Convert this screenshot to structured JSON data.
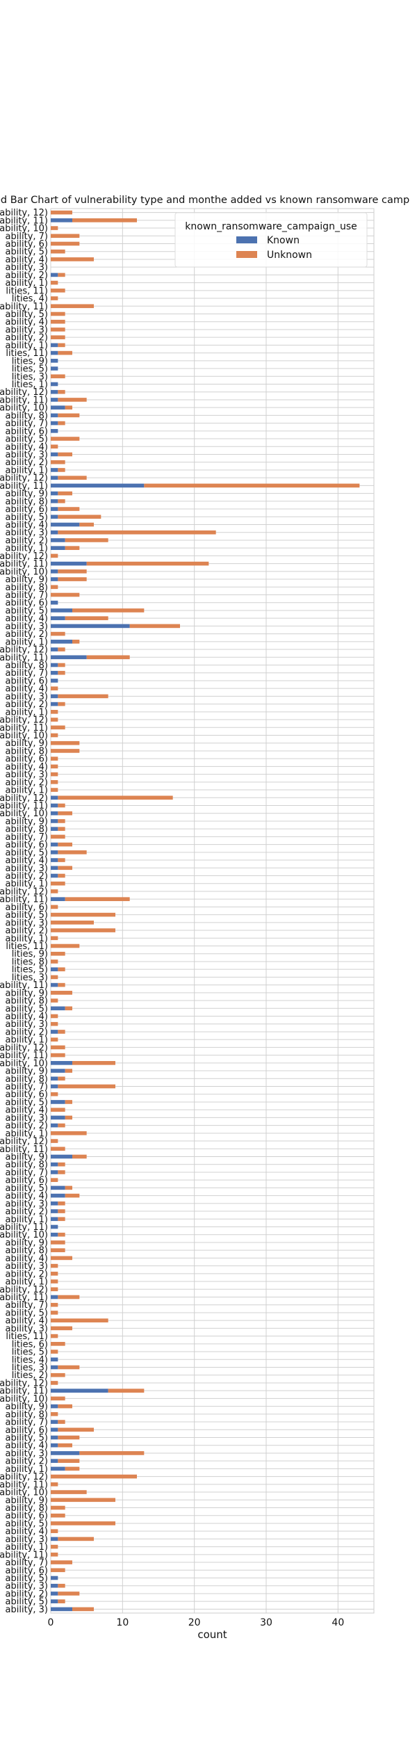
{
  "chart_data": {
    "type": "bar",
    "orientation": "horizontal",
    "stacked": true,
    "title": "ed Bar Chart of  vulnerability type and monthe added vs known ransomware camp",
    "xlabel": "count",
    "ylabel": "",
    "xlim": [
      0,
      45
    ],
    "xticks": [
      0,
      10,
      20,
      30,
      40
    ],
    "grid": true,
    "legend": {
      "title": "known_ransomware_campaign_use",
      "placement": "top-right",
      "entries": [
        "Known",
        "Unknown"
      ]
    },
    "colors": {
      "Known": "#4c72b0",
      "Unknown": "#dd8452"
    },
    "categories": [
      "ability, 12)",
      "ability, 11)",
      "ability, 10)",
      "ability, 7)",
      "ability, 6)",
      "ability, 5)",
      "ability, 4)",
      "ability, 3)",
      "ability, 2)",
      "ability, 1)",
      "lities, 11)",
      "lities, 4)",
      "ability, 11)",
      "ability, 5)",
      "ability, 4)",
      "ability, 3)",
      "ability, 2)",
      "ability, 1)",
      "lities, 11)",
      "lities, 9)",
      "lities, 5)",
      "lities, 3)",
      "lities, 1)",
      "ability, 12)",
      "ability, 11)",
      "ability, 10)",
      "ability, 8)",
      "ability, 7)",
      "ability, 6)",
      "ability, 5)",
      "ability, 4)",
      "ability, 3)",
      "ability, 2)",
      "ability, 1)",
      "ability, 12)",
      "ability, 11)",
      "ability, 9)",
      "ability, 8)",
      "ability, 6)",
      "ability, 5)",
      "ability, 4)",
      "ability, 3)",
      "ability, 2)",
      "ability, 1)",
      "ability, 12)",
      "ability, 11)",
      "ability, 10)",
      "ability, 9)",
      "ability, 8)",
      "ability, 7)",
      "ability, 6)",
      "ability, 5)",
      "ability, 4)",
      "ability, 3)",
      "ability, 2)",
      "ability, 1)",
      "ability, 12)",
      "ability, 11)",
      "ability, 8)",
      "ability, 7)",
      "ability, 6)",
      "ability, 4)",
      "ability, 3)",
      "ability, 2)",
      "ability, 1)",
      "ability, 12)",
      "ability, 11)",
      "ability, 10)",
      "ability, 9)",
      "ability, 8)",
      "ability, 6)",
      "ability, 4)",
      "ability, 3)",
      "ability, 2)",
      "ability, 1)",
      "ability, 12)",
      "ability, 11)",
      "ability, 10)",
      "ability, 9)",
      "ability, 8)",
      "ability, 7)",
      "ability, 6)",
      "ability, 5)",
      "ability, 4)",
      "ability, 3)",
      "ability, 2)",
      "ability, 1)",
      "ability, 12)",
      "ability, 11)",
      "ability, 6)",
      "ability, 5)",
      "ability, 3)",
      "ability, 2)",
      "ability, 1)",
      "lities, 11)",
      "lities, 9)",
      "lities, 8)",
      "lities, 5)",
      "lities, 3)",
      "ability, 11)",
      "ability, 9)",
      "ability, 8)",
      "ability, 5)",
      "ability, 4)",
      "ability, 3)",
      "ability, 2)",
      "ability, 1)",
      "ability, 12)",
      "ability, 11)",
      "ability, 10)",
      "ability, 9)",
      "ability, 8)",
      "ability, 7)",
      "ability, 6)",
      "ability, 5)",
      "ability, 4)",
      "ability, 3)",
      "ability, 2)",
      "ability, 1)",
      "ability, 12)",
      "ability, 11)",
      "ability, 9)",
      "ability, 8)",
      "ability, 7)",
      "ability, 6)",
      "ability, 5)",
      "ability, 4)",
      "ability, 3)",
      "ability, 2)",
      "ability, 1)",
      "ability, 11)",
      "ability, 10)",
      "ability, 9)",
      "ability, 8)",
      "ability, 4)",
      "ability, 3)",
      "ability, 2)",
      "ability, 1)",
      "ability, 12)",
      "ability, 11)",
      "ability, 7)",
      "ability, 5)",
      "ability, 4)",
      "ability, 3)",
      "lities, 11)",
      "lities, 6)",
      "lities, 5)",
      "lities, 4)",
      "lities, 3)",
      "lities, 2)",
      "ability, 12)",
      "ability, 11)",
      "ability, 10)",
      "ability, 9)",
      "ability, 8)",
      "ability, 7)",
      "ability, 6)",
      "ability, 5)",
      "ability, 4)",
      "ability, 3)",
      "ability, 2)",
      "ability, 1)",
      "ability, 12)",
      "ability, 11)",
      "ability, 10)",
      "ability, 9)",
      "ability, 8)",
      "ability, 6)",
      "ability, 5)",
      "ability, 4)",
      "ability, 3)",
      "ability, 1)",
      "ability, 11)",
      "ability, 7)",
      "ability, 6)",
      "ability, 5)",
      "ability, 3)",
      "ability, 2)",
      "ability, 5)",
      "ability, 3)"
    ],
    "series": [
      {
        "name": "Known",
        "values": [
          0,
          3,
          0,
          0,
          0,
          0,
          0,
          0,
          1,
          0,
          0,
          0,
          0,
          0,
          0,
          0,
          0,
          1,
          1,
          1,
          1,
          0,
          1,
          1,
          1,
          2,
          1,
          1,
          1,
          0,
          0,
          1,
          0,
          1,
          1,
          13,
          1,
          1,
          1,
          1,
          4,
          1,
          2,
          2,
          0,
          5,
          1,
          1,
          0,
          0,
          1,
          3,
          2,
          11,
          0,
          3,
          1,
          5,
          1,
          1,
          1,
          0,
          1,
          1,
          0,
          0,
          0,
          0,
          0,
          0,
          0,
          0,
          0,
          0,
          0,
          1,
          1,
          1,
          1,
          1,
          0,
          1,
          1,
          1,
          1,
          1,
          0,
          0,
          2,
          0,
          0,
          0,
          0,
          0,
          0,
          0,
          0,
          1,
          0,
          1,
          0,
          0,
          2,
          0,
          0,
          1,
          0,
          0,
          0,
          3,
          2,
          1,
          1,
          0,
          2,
          0,
          2,
          1,
          0,
          0,
          0,
          3,
          1,
          1,
          0,
          2,
          2,
          1,
          1,
          1,
          1,
          1,
          0,
          0,
          0,
          0,
          0,
          0,
          0,
          1,
          0,
          0,
          0,
          0,
          0,
          0,
          0,
          1,
          1,
          0,
          0,
          8,
          0,
          1,
          0,
          1,
          1,
          1,
          1,
          4,
          1,
          2,
          0,
          0,
          0,
          0,
          0,
          0,
          0,
          0,
          1,
          0,
          0,
          0,
          0,
          1,
          1,
          1,
          1,
          3
        ]
      },
      {
        "name": "Unknown",
        "values": [
          3,
          9,
          1,
          4,
          4,
          2,
          6,
          0,
          1,
          1,
          2,
          1,
          6,
          2,
          2,
          2,
          2,
          1,
          2,
          0,
          0,
          2,
          0,
          1,
          4,
          1,
          3,
          1,
          0,
          4,
          1,
          2,
          2,
          1,
          4,
          30,
          2,
          1,
          3,
          6,
          2,
          22,
          6,
          2,
          1,
          17,
          4,
          4,
          1,
          4,
          0,
          10,
          6,
          7,
          2,
          1,
          1,
          6,
          1,
          1,
          0,
          1,
          7,
          1,
          1,
          1,
          2,
          1,
          4,
          4,
          1,
          1,
          1,
          1,
          1,
          16,
          1,
          2,
          1,
          1,
          2,
          2,
          4,
          1,
          2,
          1,
          2,
          1,
          9,
          1,
          9,
          6,
          9,
          1,
          4,
          2,
          1,
          1,
          1,
          1,
          3,
          1,
          1,
          1,
          1,
          1,
          1,
          2,
          2,
          6,
          1,
          1,
          8,
          1,
          1,
          2,
          1,
          1,
          5,
          1,
          2,
          2,
          1,
          1,
          1,
          1,
          2,
          1,
          1,
          1,
          0,
          1,
          2,
          2,
          3,
          1,
          1,
          1,
          1,
          3,
          1,
          1,
          8,
          3,
          1,
          2,
          1,
          0,
          3,
          2,
          1,
          5,
          2,
          2,
          1,
          1,
          5,
          3,
          2,
          9,
          3,
          2,
          12,
          1,
          5,
          9,
          2,
          2,
          9,
          1,
          5,
          1,
          1,
          3,
          2,
          0,
          1,
          3,
          1,
          3
        ]
      }
    ]
  }
}
